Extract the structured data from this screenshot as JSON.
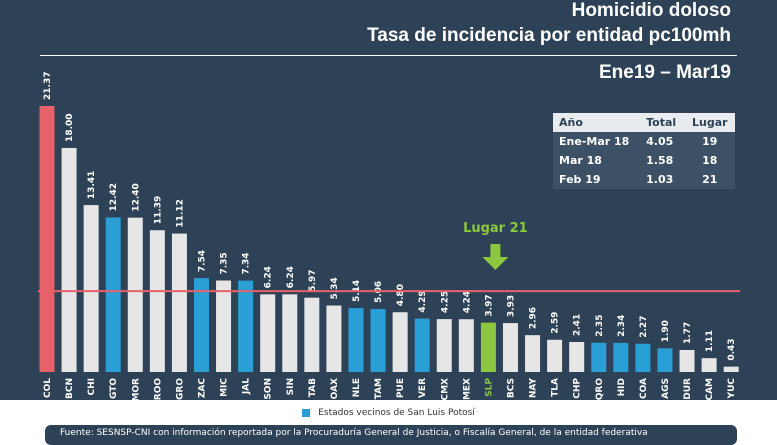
{
  "header": {
    "title1": "Homicidio doloso",
    "title2": "Tasa de incidencia por entidad pc100mh",
    "period": "Ene19 – Mar19"
  },
  "table": {
    "headers": [
      "Año",
      "Total",
      "Lugar"
    ],
    "rows": [
      [
        "Ene-Mar 18",
        "4.05",
        "19"
      ],
      [
        "Mar 18",
        "1.58",
        "18"
      ],
      [
        "Feb 19",
        "1.03",
        "21"
      ]
    ]
  },
  "callout": {
    "label": "Lugar 21",
    "target": "SLP"
  },
  "legend": {
    "label": "Estados vecinos de San Luis Potosí"
  },
  "source": "Fuente: SESNSP-CNI con información reportada por la Procuraduría General de Justicia, o Fiscalía General, de la entidad federativa",
  "colors": {
    "default": "#e6e6e6",
    "neighbor": "#2a9fd6",
    "max": "#e8606a",
    "slp": "#8dc63f",
    "reference": "#e8606a"
  },
  "chart_data": {
    "type": "bar",
    "categories": [
      "COL",
      "BCN",
      "CHI",
      "GTO",
      "MOR",
      "ROO",
      "GRO",
      "ZAC",
      "MIC",
      "JAL",
      "SON",
      "SIN",
      "TAB",
      "OAX",
      "NLE",
      "TAM",
      "PUE",
      "VER",
      "CMX",
      "MEX",
      "SLP",
      "BCS",
      "NAY",
      "TLA",
      "CHP",
      "QRO",
      "HID",
      "COA",
      "AGS",
      "DUR",
      "CAM",
      "YUC"
    ],
    "values": [
      21.37,
      18.0,
      13.41,
      12.42,
      12.4,
      11.39,
      11.12,
      7.54,
      7.35,
      7.34,
      6.24,
      6.24,
      5.97,
      5.34,
      5.14,
      5.06,
      4.8,
      4.29,
      4.25,
      4.24,
      3.97,
      3.93,
      2.96,
      2.59,
      2.41,
      2.35,
      2.34,
      2.27,
      1.9,
      1.77,
      1.11,
      0.43
    ],
    "labels": [
      "21.37",
      "18.00",
      "13.41",
      "12.42",
      "12.40",
      "11.39",
      "11.12",
      "7.54",
      "7.35",
      "7.34",
      "6.24",
      "6.24",
      "5.97",
      "5.34",
      "5.14",
      "5.06",
      "4.80",
      "4.29",
      "4.25",
      "4.24",
      "3.97",
      "3.93",
      "2.96",
      "2.59",
      "2.41",
      "2.35",
      "2.34",
      "2.27",
      "1.90",
      "1.77",
      "1.11",
      "0.43"
    ],
    "groups": [
      "max",
      "default",
      "default",
      "neighbor",
      "default",
      "default",
      "default",
      "neighbor",
      "default",
      "neighbor",
      "default",
      "default",
      "default",
      "default",
      "neighbor",
      "neighbor",
      "default",
      "neighbor",
      "default",
      "default",
      "slp",
      "default",
      "default",
      "default",
      "default",
      "neighbor",
      "neighbor",
      "neighbor",
      "neighbor",
      "default",
      "default",
      "default"
    ],
    "reference_line": 6.5,
    "ylim": [
      0,
      21.37
    ]
  }
}
